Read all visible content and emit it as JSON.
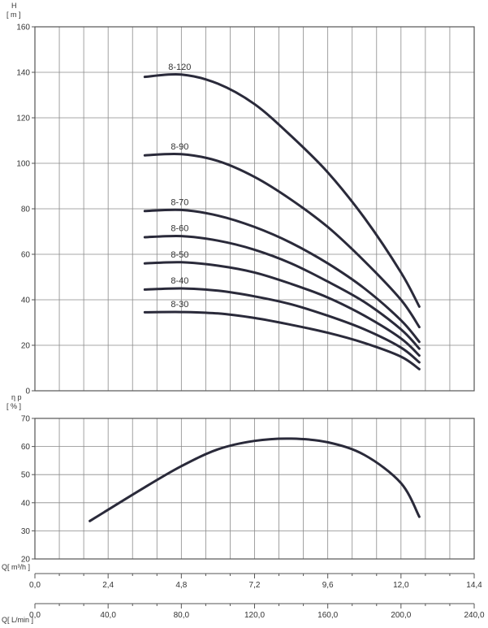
{
  "colors": {
    "grid": "#8a8a8a",
    "frame": "#555555",
    "curve": "#2a2a3a",
    "text": "#333333"
  },
  "chart_data": [
    {
      "type": "line",
      "title": "",
      "ylabel_top": "H",
      "ylabel_unit": "[ m ]",
      "ylim": [
        0,
        160
      ],
      "yticks": [
        0,
        20,
        40,
        60,
        80,
        100,
        120,
        140,
        160
      ],
      "ytick_labels": [
        "0",
        "20",
        "40",
        "60",
        "80",
        "100",
        "120",
        "140",
        "160"
      ],
      "xlim_m3h": [
        0,
        14.4
      ],
      "grid": true,
      "series": [
        {
          "name": "8-120",
          "x": [
            3.6,
            4.8,
            6.0,
            7.2,
            8.4,
            9.6,
            10.8,
            12.0,
            12.6
          ],
          "y": [
            138,
            139,
            135,
            126,
            112,
            96,
            76,
            52,
            37
          ]
        },
        {
          "name": "8-90",
          "x": [
            3.6,
            4.8,
            6.0,
            7.2,
            8.4,
            9.6,
            10.8,
            12.0,
            12.6
          ],
          "y": [
            103.5,
            104,
            101,
            94,
            84,
            72,
            57,
            40,
            28
          ]
        },
        {
          "name": "8-70",
          "x": [
            3.6,
            4.8,
            6.0,
            7.2,
            8.4,
            9.6,
            10.8,
            12.0,
            12.6
          ],
          "y": [
            79,
            79.5,
            77,
            72,
            65,
            56,
            45,
            31,
            21.5
          ]
        },
        {
          "name": "8-60",
          "x": [
            3.6,
            4.8,
            6.0,
            7.2,
            8.4,
            9.6,
            10.8,
            12.0,
            12.6
          ],
          "y": [
            67.5,
            68,
            66,
            62,
            56,
            48,
            39,
            27,
            18.5
          ]
        },
        {
          "name": "8-50",
          "x": [
            3.6,
            4.8,
            6.0,
            7.2,
            8.4,
            9.6,
            10.8,
            12.0,
            12.6
          ],
          "y": [
            56,
            56.5,
            55,
            52,
            47,
            41,
            33,
            23,
            15.5
          ]
        },
        {
          "name": "8-40",
          "x": [
            3.6,
            4.8,
            6.0,
            7.2,
            8.4,
            9.6,
            10.8,
            12.0,
            12.6
          ],
          "y": [
            44.5,
            45,
            44,
            41.5,
            38,
            33,
            27,
            19,
            12.5
          ]
        },
        {
          "name": "8-30",
          "x": [
            3.6,
            4.8,
            6.0,
            7.2,
            8.4,
            9.6,
            10.8,
            12.0,
            12.6
          ],
          "y": [
            34.5,
            34.6,
            34,
            32,
            29,
            25.5,
            21,
            15,
            9.5
          ]
        }
      ]
    },
    {
      "type": "line",
      "title": "",
      "ylabel_top": "η p",
      "ylabel_unit": "[ % ]",
      "ylim": [
        20,
        70
      ],
      "yticks": [
        20,
        30,
        40,
        50,
        60,
        70
      ],
      "ytick_labels": [
        "20",
        "30",
        "40",
        "50",
        "60",
        "70"
      ],
      "xlim_m3h": [
        0,
        14.4
      ],
      "grid": true,
      "series": [
        {
          "x": [
            1.8,
            3.6,
            4.8,
            6.0,
            7.2,
            8.4,
            9.6,
            10.8,
            12.0,
            12.6
          ],
          "y": [
            33.5,
            45.5,
            53,
            59,
            62,
            62.8,
            61.5,
            57,
            47,
            35
          ]
        }
      ]
    }
  ],
  "x_axes": {
    "m3h": {
      "label": "Q[ m³/h ]",
      "range": [
        0,
        14.4
      ],
      "ticks": [
        0,
        2.4,
        4.8,
        7.2,
        9.6,
        12.0,
        14.4
      ],
      "tick_labels": [
        "0,0",
        "2,4",
        "4,8",
        "7,2",
        "9,6",
        "12,0",
        "14,4"
      ]
    },
    "lmin": {
      "label": "Q[ L/min ]",
      "range": [
        0,
        240
      ],
      "ticks": [
        0,
        40,
        80,
        120,
        160,
        200,
        240
      ],
      "tick_labels": [
        "0,0",
        "40,0",
        "80,0",
        "120,0",
        "160,0",
        "200,0",
        "240,0"
      ]
    }
  }
}
